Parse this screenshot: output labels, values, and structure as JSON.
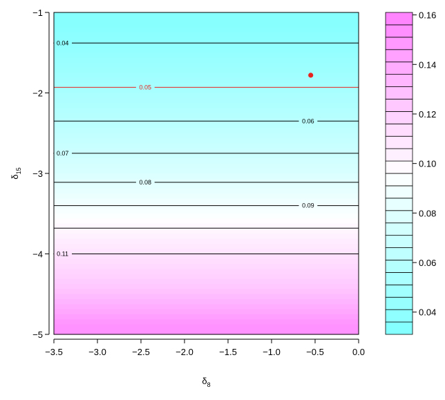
{
  "chart_data": {
    "type": "heatmap",
    "title": "",
    "xlabel": {
      "symbol": "δ",
      "subscript": "8"
    },
    "ylabel": {
      "symbol": "δ",
      "subscript": "15"
    },
    "xlim": [
      -3.5,
      0.0
    ],
    "ylim": [
      -5,
      -1
    ],
    "x_ticks": [
      {
        "value": -3.5,
        "label": "−3.5"
      },
      {
        "value": -3.0,
        "label": "−3.0"
      },
      {
        "value": -2.5,
        "label": "−2.5"
      },
      {
        "value": -2.0,
        "label": "−2.0"
      },
      {
        "value": -1.5,
        "label": "−1.5"
      },
      {
        "value": -1.0,
        "label": "−1.0"
      },
      {
        "value": -0.5,
        "label": "−0.5"
      },
      {
        "value": 0.0,
        "label": "0.0"
      }
    ],
    "y_ticks": [
      {
        "value": -5,
        "label": "−5"
      },
      {
        "value": -4,
        "label": "−4"
      },
      {
        "value": -3,
        "label": "−3"
      },
      {
        "value": -2,
        "label": "−2"
      },
      {
        "value": -1,
        "label": "−1"
      }
    ],
    "field": {
      "description_free": true,
      "bands": [
        {
          "y_from": -1.0,
          "y_to": -1.38,
          "value": 0.035
        },
        {
          "y_from": -1.38,
          "y_to": -1.93,
          "value": 0.045
        },
        {
          "y_from": -1.93,
          "y_to": -2.35,
          "value": 0.055
        },
        {
          "y_from": -2.35,
          "y_to": -2.75,
          "value": 0.065
        },
        {
          "y_from": -2.75,
          "y_to": -3.11,
          "value": 0.075
        },
        {
          "y_from": -3.11,
          "y_to": -3.4,
          "value": 0.085
        },
        {
          "y_from": -3.4,
          "y_to": -3.68,
          "value": 0.095
        },
        {
          "y_from": -3.68,
          "y_to": -4.0,
          "value": 0.105
        },
        {
          "y_from": -4.0,
          "y_to": -4.3,
          "value": 0.115
        },
        {
          "y_from": -4.3,
          "y_to": -4.55,
          "value": 0.125
        },
        {
          "y_from": -4.55,
          "y_to": -4.78,
          "value": 0.138
        },
        {
          "y_from": -4.78,
          "y_to": -5.0,
          "value": 0.152
        }
      ]
    },
    "contours": [
      {
        "level_label": "0.04",
        "y": -1.38,
        "label_x": -3.4,
        "color": "#000000"
      },
      {
        "level_label": "0.05",
        "y": -1.93,
        "label_x": -2.45,
        "color": "#e8231f"
      },
      {
        "level_label": "0.06",
        "y": -2.35,
        "label_x": -0.58,
        "color": "#000000"
      },
      {
        "level_label": "0.07",
        "y": -2.75,
        "label_x": -3.4,
        "color": "#000000"
      },
      {
        "level_label": "0.08",
        "y": -3.11,
        "label_x": -2.45,
        "color": "#000000"
      },
      {
        "level_label": "0.09",
        "y": -3.4,
        "label_x": -0.58,
        "color": "#000000"
      },
      {
        "level_label": "",
        "y": -3.68,
        "label_x": null,
        "color": "#000000"
      },
      {
        "level_label": "0.11",
        "y": -4.0,
        "label_x": -3.4,
        "color": "#000000"
      }
    ],
    "highlight_point": {
      "x": -0.55,
      "y": -1.78,
      "color": "#e8231f"
    },
    "colorbar": {
      "range": [
        0.031,
        0.161
      ],
      "steps": 26,
      "ticks": [
        {
          "value": 0.04,
          "label": "0.04"
        },
        {
          "value": 0.06,
          "label": "0.06"
        },
        {
          "value": 0.08,
          "label": "0.08"
        },
        {
          "value": 0.1,
          "label": "0.10"
        },
        {
          "value": 0.12,
          "label": "0.12"
        },
        {
          "value": 0.14,
          "label": "0.14"
        },
        {
          "value": 0.16,
          "label": "0.16"
        }
      ],
      "color_low": "#80ffff",
      "color_mid": "#ffffff",
      "color_high": "#ff80ff",
      "mid_value": 0.096
    }
  }
}
